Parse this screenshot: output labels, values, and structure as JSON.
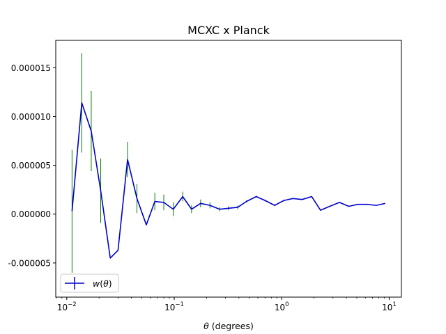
{
  "chart_data": {
    "type": "line",
    "title": "MCXC x Planck",
    "xlabel_symbol": "θ",
    "xlabel_unit": " (degrees)",
    "ylabel": "",
    "xscale": "log",
    "xlim": [
      0.0079,
      13.0
    ],
    "ylim": [
      -8.5e-06,
      1.78e-05
    ],
    "x_tick_values": [
      0.01,
      0.1,
      1,
      10
    ],
    "x_tick_labels": [
      {
        "base": "10",
        "exp": "−2"
      },
      {
        "base": "10",
        "exp": "−1"
      },
      {
        "base": "10",
        "exp": "0"
      },
      {
        "base": "10",
        "exp": "1"
      }
    ],
    "y_tick_values": [
      -5e-06,
      0,
      5e-06,
      1e-05,
      1.5e-05
    ],
    "y_tick_labels": [
      "-0.000005",
      "0.000000",
      "0.000005",
      "0.000010",
      "0.000015"
    ],
    "grid": false,
    "legend": {
      "position": "lower-left",
      "label_symbol": "w",
      "label_arg": "θ"
    },
    "series": [
      {
        "name": "w(θ)",
        "color": "#0000cc",
        "error_color": "#008000",
        "points": [
          {
            "x": 0.0112,
            "y": 3e-07,
            "err": 6.3e-06
          },
          {
            "x": 0.0138,
            "y": 1.14e-05,
            "err": 5.1e-06
          },
          {
            "x": 0.0169,
            "y": 8.5e-06,
            "err": 4.1e-06
          },
          {
            "x": 0.0207,
            "y": 2.4e-06,
            "err": 3.3e-06
          },
          {
            "x": 0.0254,
            "y": -4.5e-06,
            "err": 0
          },
          {
            "x": 0.03,
            "y": -3.7e-06,
            "err": 0
          },
          {
            "x": 0.0368,
            "y": 5.6e-06,
            "err": 1.8e-06
          },
          {
            "x": 0.045,
            "y": 1.6e-06,
            "err": 1.5e-06
          },
          {
            "x": 0.055,
            "y": -1.1e-06,
            "err": 0
          },
          {
            "x": 0.066,
            "y": 1.3e-06,
            "err": 9e-07
          },
          {
            "x": 0.08,
            "y": 1.2e-06,
            "err": 8e-07
          },
          {
            "x": 0.098,
            "y": 5e-07,
            "err": 7e-07
          },
          {
            "x": 0.12,
            "y": 1.8e-06,
            "err": 5e-07
          },
          {
            "x": 0.145,
            "y": 5e-07,
            "err": 4e-07
          },
          {
            "x": 0.176,
            "y": 1.1e-06,
            "err": 4e-07
          },
          {
            "x": 0.215,
            "y": 9e-07,
            "err": 3e-07
          },
          {
            "x": 0.265,
            "y": 5e-07,
            "err": 2e-07
          },
          {
            "x": 0.32,
            "y": 6e-07,
            "err": 2e-07
          },
          {
            "x": 0.39,
            "y": 7e-07,
            "err": 2e-07
          },
          {
            "x": 0.47,
            "y": 1.3e-06,
            "err": 1e-07
          },
          {
            "x": 0.58,
            "y": 1.8e-06,
            "err": 1e-07
          },
          {
            "x": 0.7,
            "y": 1.4e-06,
            "err": 1e-07
          },
          {
            "x": 0.86,
            "y": 9e-07,
            "err": 1e-07
          },
          {
            "x": 1.05,
            "y": 1.4e-06,
            "err": 1e-07
          },
          {
            "x": 1.27,
            "y": 1.6e-06,
            "err": 0
          },
          {
            "x": 1.55,
            "y": 1.5e-06,
            "err": 0
          },
          {
            "x": 1.9,
            "y": 1.8e-06,
            "err": 0
          },
          {
            "x": 2.3,
            "y": 4e-07,
            "err": 0
          },
          {
            "x": 2.8,
            "y": 8e-07,
            "err": 0
          },
          {
            "x": 3.45,
            "y": 1.2e-06,
            "err": 0
          },
          {
            "x": 4.2,
            "y": 8e-07,
            "err": 0
          },
          {
            "x": 5.1,
            "y": 1e-06,
            "err": 0
          },
          {
            "x": 6.2,
            "y": 1e-06,
            "err": 0
          },
          {
            "x": 7.6,
            "y": 9e-07,
            "err": 0
          },
          {
            "x": 9.2,
            "y": 1.1e-06,
            "err": 0
          }
        ]
      }
    ]
  }
}
